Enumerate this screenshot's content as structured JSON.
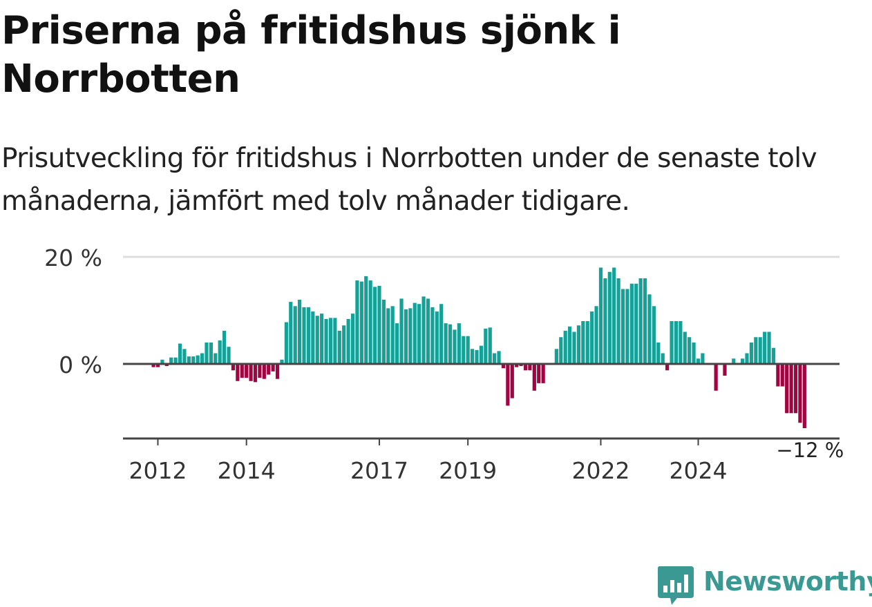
{
  "title": "Priserna på fritidshus sjönk i Norrbotten",
  "subtitle": "Prisutveckling för fritidshus i Norrbotten under de senaste tolv månaderna, jämfört med tolv månader tidigare.",
  "brand": "Newsworthy",
  "colors": {
    "positive": "#14a198",
    "negative": "#a00541",
    "axis": "#444444",
    "grid": "#dddddd",
    "brand": "#3a9a93"
  },
  "chart_data": {
    "type": "bar",
    "title": "Priserna på fritidshus sjönk i Norrbotten",
    "ylabel": "",
    "xlabel": "",
    "ylim": [
      -14,
      20
    ],
    "yticks": [
      {
        "value": 0,
        "label": "0 %"
      },
      {
        "value": 20,
        "label": "20 %"
      }
    ],
    "x_start": "2011-05",
    "xticks": [
      {
        "index": 7,
        "label": "2012"
      },
      {
        "index": 27,
        "label": "2014"
      },
      {
        "index": 57,
        "label": "2017"
      },
      {
        "index": 77,
        "label": "2019"
      },
      {
        "index": 107,
        "label": "2022"
      },
      {
        "index": 129,
        "label": "2024"
      }
    ],
    "last_label": "−12 %",
    "series": [
      {
        "name": "Prisutveckling",
        "values": [
          0,
          0,
          0,
          0,
          0,
          0,
          -0.6,
          -0.6,
          0.8,
          -0.4,
          1.2,
          1.2,
          3.8,
          2.8,
          1.4,
          1.4,
          1.6,
          2,
          4,
          4,
          2,
          4.4,
          6.2,
          3.2,
          -1.2,
          -3.2,
          -2.6,
          -2.6,
          -3.2,
          -3.4,
          -2.6,
          -2.8,
          -2,
          -1.4,
          -2.8,
          0.8,
          7.8,
          11.6,
          10.8,
          12,
          10.6,
          10.6,
          9.8,
          9,
          9.4,
          8.4,
          8.6,
          8.6,
          6.2,
          7.2,
          8.4,
          9.4,
          15.6,
          15.4,
          16.4,
          15.6,
          14.4,
          14.6,
          12,
          10.4,
          10.8,
          7.6,
          12.2,
          10.2,
          10.4,
          11.4,
          11.2,
          12.6,
          12.2,
          10.6,
          9.8,
          11.2,
          7.6,
          7.4,
          6.4,
          7.6,
          5.2,
          5.2,
          2.8,
          2.6,
          3.4,
          6.6,
          6.8,
          2,
          2.4,
          -0.8,
          -7.8,
          -6.4,
          -0.6,
          -0.4,
          -1.2,
          -1.2,
          -5,
          -3.6,
          -3.6,
          0,
          0,
          2.8,
          5,
          6.2,
          7,
          6,
          7.2,
          8,
          8,
          9.8,
          10.8,
          18,
          16,
          17.2,
          18,
          16,
          14,
          14,
          15,
          15,
          16,
          16,
          13,
          10.8,
          4,
          2,
          -1.2,
          8,
          8,
          8,
          6,
          5,
          4,
          1,
          2,
          0,
          0,
          -5,
          0,
          -2.2,
          0,
          1,
          0,
          1,
          2,
          4,
          5,
          5,
          6,
          6,
          3,
          -4.2,
          -4.2,
          -9.2,
          -9.2,
          -9.2,
          -11,
          -12
        ]
      }
    ]
  }
}
